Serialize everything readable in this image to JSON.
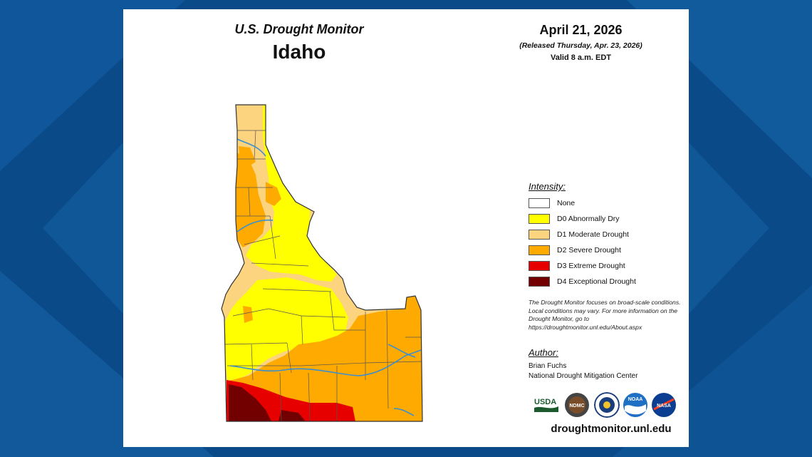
{
  "header": {
    "title": "U.S. Drought Monitor",
    "region": "Idaho",
    "date": "April 21, 2026",
    "released": "(Released Thursday, Apr. 23, 2026)",
    "valid": "Valid 8 a.m. EDT"
  },
  "legend": {
    "title": "Intensity:",
    "items": [
      {
        "label": "None",
        "color": "#ffffff"
      },
      {
        "label": "D0 Abnormally Dry",
        "color": "#ffff00"
      },
      {
        "label": "D1 Moderate Drought",
        "color": "#fcd37f"
      },
      {
        "label": "D2 Severe Drought",
        "color": "#ffaa00"
      },
      {
        "label": "D3 Extreme Drought",
        "color": "#e60000"
      },
      {
        "label": "D4 Exceptional Drought",
        "color": "#730000"
      }
    ]
  },
  "note": "The Drought Monitor focuses on broad-scale conditions. Local conditions may vary. For more information on the Drought Monitor, go to https://droughtmonitor.unl.edu/About.aspx",
  "author": {
    "title": "Author:",
    "name": "Brian Fuchs",
    "org": "National Drought Mitigation Center"
  },
  "logos": {
    "usda": "USDA",
    "ndmc": "NDMC",
    "noaa": "NOAA",
    "nasa": "NASA"
  },
  "footer": {
    "url": "droughtmonitor.unl.edu"
  },
  "colors": {
    "background": "#0d4f8f",
    "none": "#ffffff",
    "d0": "#ffff00",
    "d1": "#fcd37f",
    "d2": "#ffaa00",
    "d3": "#e60000",
    "d4": "#730000",
    "rivers": "#3a8fd0"
  }
}
